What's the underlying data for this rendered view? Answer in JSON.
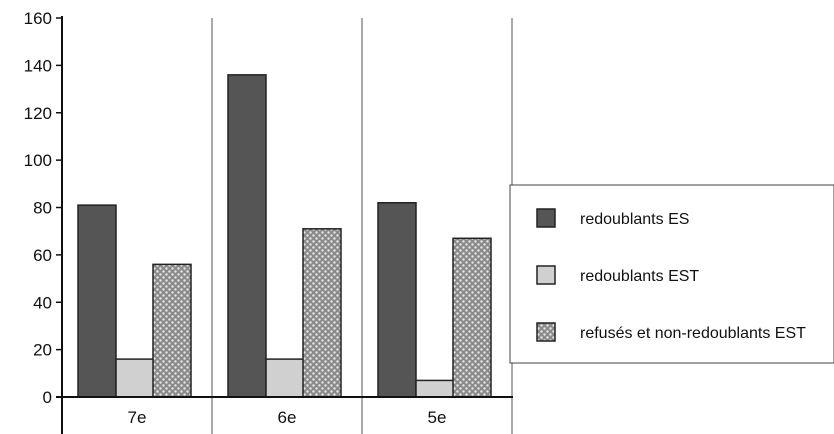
{
  "chart_data": {
    "type": "bar",
    "categories": [
      "7e",
      "6e",
      "5e"
    ],
    "series": [
      {
        "name": "redoublants ES",
        "values": [
          81,
          136,
          82
        ],
        "color": "#555555",
        "pattern": "solid"
      },
      {
        "name": "redoublants EST",
        "values": [
          16,
          16,
          7
        ],
        "color": "#d0d0d0",
        "pattern": "solid"
      },
      {
        "name": "refusés et non-redoublants EST",
        "values": [
          56,
          71,
          67
        ],
        "color": "#a8a8a8",
        "pattern": "dots"
      }
    ],
    "title": "",
    "xlabel": "",
    "ylabel": "",
    "ylim": [
      0,
      160
    ],
    "yticks": [
      0,
      20,
      40,
      60,
      80,
      100,
      120,
      140,
      160
    ],
    "grid": "vertical category separators only",
    "legend": "right"
  }
}
